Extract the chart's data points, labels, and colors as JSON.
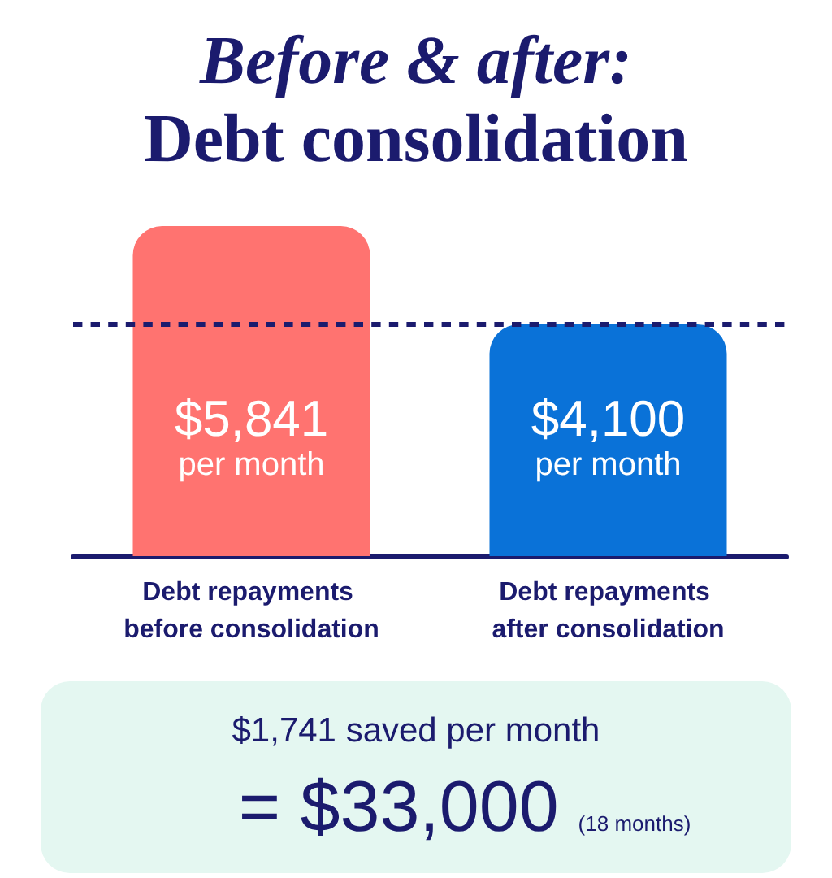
{
  "chart_data": {
    "type": "bar",
    "title": "Before & after:\nDebt consolidation",
    "categories": [
      "Debt repayments before consolidation",
      "Debt repayments after consolidation"
    ],
    "values": [
      5841,
      4100
    ],
    "colors": [
      "#ff7370",
      "#0a72d8"
    ],
    "value_labels": [
      "$5,841\nper month",
      "$4,100\nper month"
    ],
    "ref_lines": [
      {
        "axis": "y",
        "value": 4100,
        "color": "#1b1b6e",
        "line_style": "dotted"
      }
    ],
    "tick_labels": "x",
    "annotations": [
      "$1,741 saved per month",
      "= $33,000",
      "(18 months)"
    ]
  }
}
